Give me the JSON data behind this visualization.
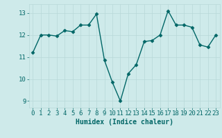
{
  "x": [
    0,
    1,
    2,
    3,
    4,
    5,
    6,
    7,
    8,
    9,
    10,
    11,
    12,
    13,
    14,
    15,
    16,
    17,
    18,
    19,
    20,
    21,
    22,
    23
  ],
  "y": [
    11.2,
    12.0,
    12.0,
    11.95,
    12.2,
    12.15,
    12.45,
    12.45,
    12.95,
    10.85,
    9.85,
    9.0,
    10.25,
    10.65,
    11.7,
    11.75,
    12.0,
    13.1,
    12.45,
    12.45,
    12.35,
    11.55,
    11.45,
    12.0
  ],
  "line_color": "#006666",
  "marker": "D",
  "markersize": 2.5,
  "linewidth": 1.0,
  "xlabel": "Humidex (Indice chaleur)",
  "xlim": [
    -0.5,
    23.5
  ],
  "ylim": [
    8.7,
    13.4
  ],
  "yticks": [
    9,
    10,
    11,
    12,
    13
  ],
  "xticks": [
    0,
    1,
    2,
    3,
    4,
    5,
    6,
    7,
    8,
    9,
    10,
    11,
    12,
    13,
    14,
    15,
    16,
    17,
    18,
    19,
    20,
    21,
    22,
    23
  ],
  "bg_color": "#ceeaea",
  "grid_color": "#b8d8d8",
  "tick_color": "#006666",
  "label_color": "#006666",
  "xlabel_fontsize": 7,
  "tick_fontsize": 6.5
}
